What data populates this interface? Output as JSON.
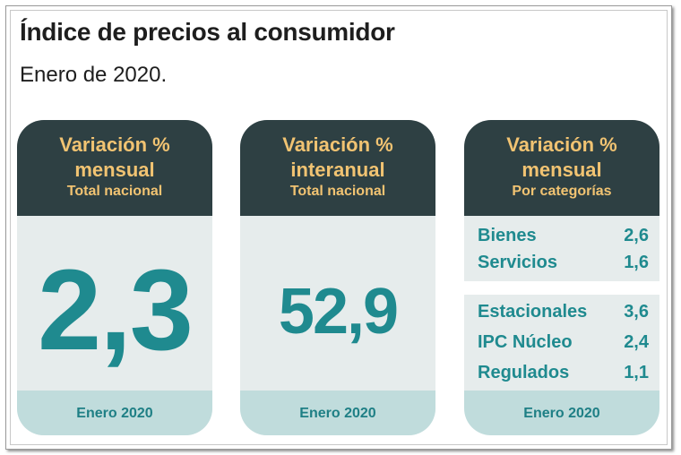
{
  "title": "Índice de precios al consumidor",
  "subtitle": "Enero de 2020.",
  "cards": [
    {
      "heading_line1": "Variación %",
      "heading_line2": "mensual",
      "heading_sub": "Total nacional",
      "value": "2,3",
      "footer": "Enero 2020"
    },
    {
      "heading_line1": "Variación %",
      "heading_line2": "interanual",
      "heading_sub": "Total nacional",
      "value": "52,9",
      "footer": "Enero 2020"
    },
    {
      "heading_line1": "Variación %",
      "heading_line2": "mensual",
      "heading_sub": "Por categorías",
      "groups": [
        {
          "rows": [
            {
              "name": "Bienes",
              "value": "2,6"
            },
            {
              "name": "Servicios",
              "value": "1,6"
            }
          ]
        },
        {
          "rows": [
            {
              "name": "Estacionales",
              "value": "3,6"
            },
            {
              "name": "IPC Núcleo",
              "value": "2,4"
            },
            {
              "name": "Regulados",
              "value": "1,1"
            }
          ]
        }
      ],
      "footer": "Enero 2020"
    }
  ],
  "colors": {
    "header_bg": "#2e4043",
    "header_text": "#f1c372",
    "value_text": "#1f8a8f",
    "body_bg": "#e6ecec",
    "footer_bg": "#c0dcdc"
  }
}
